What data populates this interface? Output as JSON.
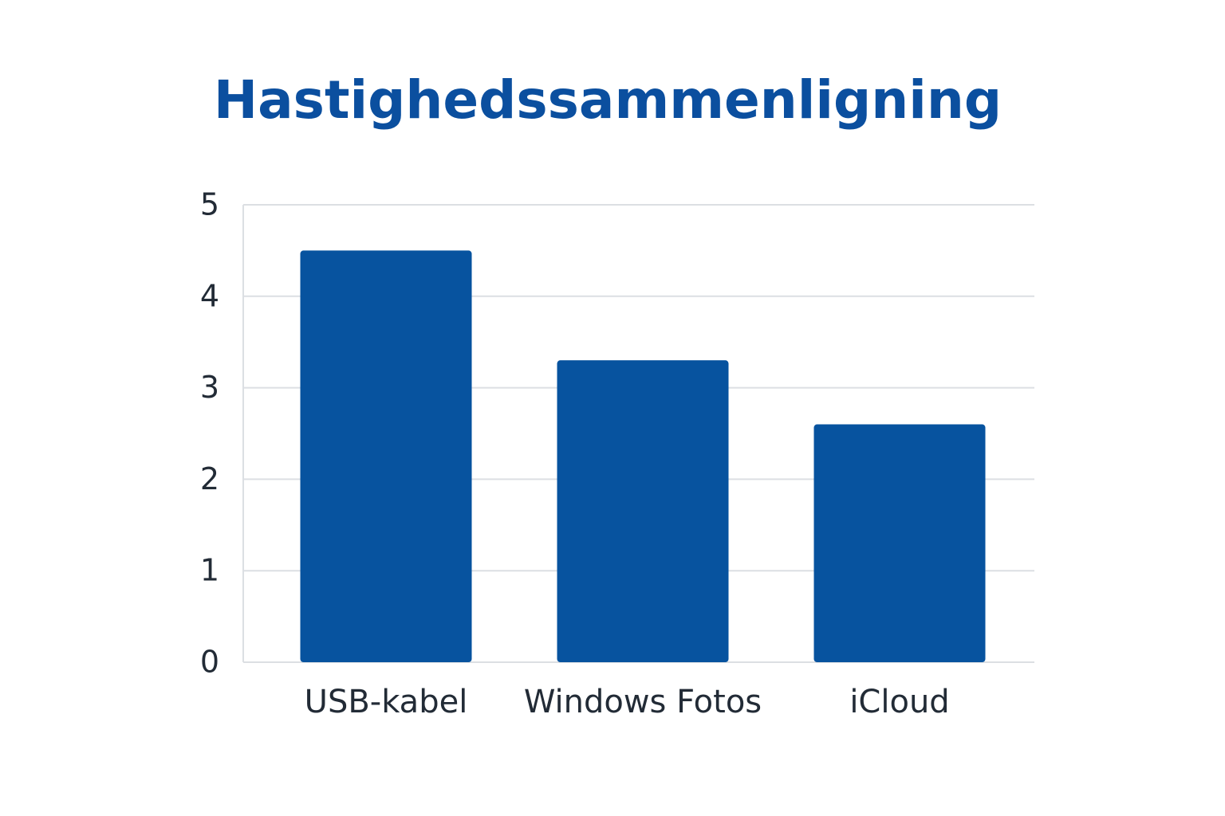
{
  "chart_data": {
    "type": "bar",
    "title": "Hastighedssammenligning",
    "categories": [
      "USB-kabel",
      "Windows Fotos",
      "iCloud"
    ],
    "values": [
      4.5,
      3.3,
      2.6
    ],
    "color": "#07539f",
    "ylim": [
      0,
      5
    ],
    "yticks": [
      0,
      1,
      2,
      3,
      4,
      5
    ],
    "grid": true
  }
}
